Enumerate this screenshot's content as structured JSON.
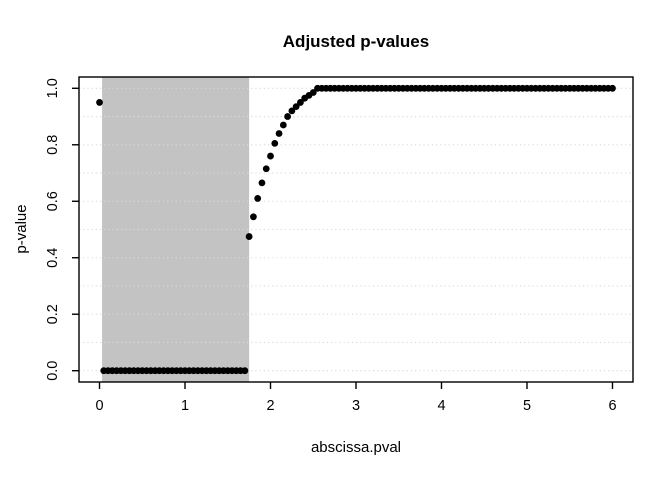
{
  "window": {
    "background": "#ffffff"
  },
  "chart_data": {
    "type": "scatter",
    "title": "Adjusted p-values",
    "xlabel": "abscissa.pval",
    "ylabel": "p-value",
    "xlim": [
      -0.24,
      6.24
    ],
    "ylim": [
      -0.04,
      1.04
    ],
    "x_ticks": [
      0,
      1,
      2,
      3,
      4,
      5,
      6
    ],
    "x_tick_labels": [
      "0",
      "1",
      "2",
      "3",
      "4",
      "5",
      "6"
    ],
    "y_ticks": [
      0,
      0.2,
      0.4,
      0.6,
      0.8,
      1
    ],
    "y_tick_labels": [
      "0.0",
      "0.2",
      "0.4",
      "0.6",
      "0.8",
      "1.0"
    ],
    "grid": {
      "orientation": "horizontal",
      "y_values": [
        0,
        0.1,
        0.2,
        0.3,
        0.4,
        0.5,
        0.6,
        0.7,
        0.8,
        0.9,
        1.0
      ],
      "style": "dotted",
      "color": "#d9d9d9"
    },
    "shaded_region": {
      "x_from": 0.03,
      "x_to": 1.75,
      "color": "#c3c3c3"
    },
    "marker": {
      "shape": "filled-circle",
      "radius": 3.4,
      "color": "#000000"
    },
    "axis_color": "#000000",
    "legend": "none",
    "x": [
      0,
      0.05,
      0.1,
      0.15,
      0.2,
      0.25,
      0.3,
      0.35,
      0.4,
      0.45,
      0.5,
      0.55,
      0.6,
      0.65,
      0.7,
      0.75,
      0.8,
      0.85,
      0.9,
      0.95,
      1,
      1.05,
      1.1,
      1.15,
      1.2,
      1.25,
      1.3,
      1.35,
      1.4,
      1.45,
      1.5,
      1.55,
      1.6,
      1.65,
      1.7,
      1.75,
      1.8,
      1.85,
      1.9,
      1.95,
      2,
      2.05,
      2.1,
      2.15,
      2.2,
      2.25,
      2.3,
      2.35,
      2.4,
      2.45,
      2.5,
      2.55,
      2.6,
      2.65,
      2.7,
      2.75,
      2.8,
      2.85,
      2.9,
      2.95,
      3,
      3.05,
      3.1,
      3.15,
      3.2,
      3.25,
      3.3,
      3.35,
      3.4,
      3.45,
      3.5,
      3.55,
      3.6,
      3.65,
      3.7,
      3.75,
      3.8,
      3.85,
      3.9,
      3.95,
      4,
      4.05,
      4.1,
      4.15,
      4.2,
      4.25,
      4.3,
      4.35,
      4.4,
      4.45,
      4.5,
      4.55,
      4.6,
      4.65,
      4.7,
      4.75,
      4.8,
      4.85,
      4.9,
      4.95,
      5,
      5.05,
      5.1,
      5.15,
      5.2,
      5.25,
      5.3,
      5.35,
      5.4,
      5.45,
      5.5,
      5.55,
      5.6,
      5.65,
      5.7,
      5.75,
      5.8,
      5.85,
      5.9,
      5.95,
      6
    ],
    "y": [
      0.95,
      0,
      0,
      0,
      0,
      0,
      0,
      0,
      0,
      0,
      0,
      0,
      0,
      0,
      0,
      0,
      0,
      0,
      0,
      0,
      0,
      0,
      0,
      0,
      0,
      0,
      0,
      0,
      0,
      0,
      0,
      0,
      0,
      0,
      0,
      0.475,
      0.545,
      0.61,
      0.665,
      0.715,
      0.76,
      0.805,
      0.84,
      0.87,
      0.9,
      0.92,
      0.935,
      0.95,
      0.965,
      0.975,
      0.985,
      1,
      1,
      1,
      1,
      1,
      1,
      1,
      1,
      1,
      1,
      1,
      1,
      1,
      1,
      1,
      1,
      1,
      1,
      1,
      1,
      1,
      1,
      1,
      1,
      1,
      1,
      1,
      1,
      1,
      1,
      1,
      1,
      1,
      1,
      1,
      1,
      1,
      1,
      1,
      1,
      1,
      1,
      1,
      1,
      1,
      1,
      1,
      1,
      1,
      1,
      1,
      1,
      1,
      1,
      1,
      1,
      1,
      1,
      1,
      1,
      1,
      1,
      1,
      1,
      1,
      1,
      1,
      1,
      1,
      1
    ]
  }
}
